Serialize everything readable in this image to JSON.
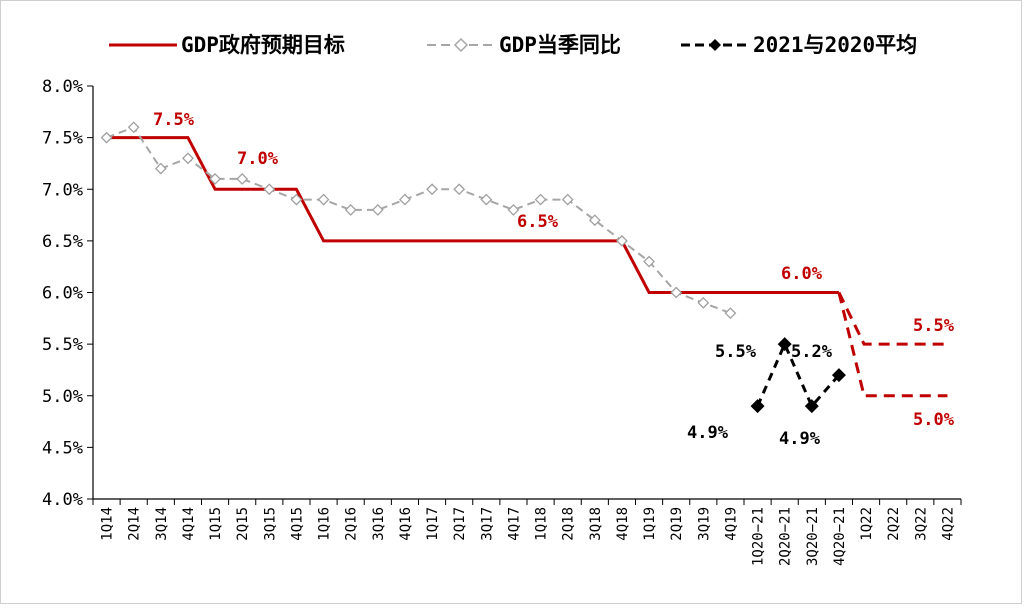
{
  "chart_data": {
    "type": "line",
    "categories": [
      "1Q14",
      "2Q14",
      "3Q14",
      "4Q14",
      "1Q15",
      "2Q15",
      "3Q15",
      "4Q15",
      "1Q16",
      "2Q16",
      "3Q16",
      "4Q16",
      "1Q17",
      "2Q17",
      "3Q17",
      "4Q17",
      "1Q18",
      "2Q18",
      "3Q18",
      "4Q18",
      "1Q19",
      "2Q19",
      "3Q19",
      "4Q19",
      "1Q20−21",
      "2Q20−21",
      "3Q20−21",
      "4Q20−21",
      "1Q22",
      "2Q22",
      "3Q22",
      "4Q22"
    ],
    "y_ticks": [
      "8.0%",
      "7.5%",
      "7.0%",
      "6.5%",
      "6.0%",
      "5.5%",
      "5.0%",
      "4.5%",
      "4.0%"
    ],
    "ylim": [
      4.0,
      8.0
    ],
    "grid": false,
    "legend_position": "top",
    "series": [
      {
        "name": "GDP政府预期目标",
        "color": "#c00000",
        "style": "solid-step",
        "values": [
          7.5,
          7.5,
          7.5,
          7.5,
          7.0,
          7.0,
          7.0,
          7.0,
          6.5,
          6.5,
          6.5,
          6.5,
          6.5,
          6.5,
          6.5,
          6.5,
          6.5,
          6.5,
          6.5,
          6.5,
          6.0,
          6.0,
          6.0,
          6.0,
          6.0,
          6.0,
          6.0,
          6.0,
          null,
          null,
          null,
          null
        ]
      },
      {
        "name": "GDP当季同比",
        "color": "#a6a6a6",
        "style": "dashed-hollow-diamond",
        "values": [
          7.5,
          7.6,
          7.2,
          7.3,
          7.1,
          7.1,
          7.0,
          6.9,
          6.9,
          6.8,
          6.8,
          6.9,
          7.0,
          7.0,
          6.9,
          6.8,
          6.9,
          6.9,
          6.7,
          6.5,
          6.3,
          6.0,
          5.9,
          5.8,
          null,
          null,
          null,
          null,
          null,
          null,
          null,
          null
        ]
      },
      {
        "name": "2021与2020平均",
        "color": "#000000",
        "style": "dashed-filled-diamond",
        "values": [
          null,
          null,
          null,
          null,
          null,
          null,
          null,
          null,
          null,
          null,
          null,
          null,
          null,
          null,
          null,
          null,
          null,
          null,
          null,
          null,
          null,
          null,
          null,
          null,
          4.9,
          5.5,
          4.9,
          5.2,
          null,
          null,
          null,
          null
        ]
      }
    ],
    "target_projection": {
      "color": "#c00000",
      "start_category": "4Q20−21",
      "upper_value": 5.5,
      "lower_value": 5.0,
      "end_category": "4Q22"
    },
    "annotations": {
      "target_75": "7.5%",
      "target_70": "7.0%",
      "target_65": "6.5%",
      "target_60": "6.0%",
      "target_55": "5.5%",
      "target_50": "5.0%",
      "avg_1q": "4.9%",
      "avg_2q": "5.5%",
      "avg_3q": "4.9%",
      "avg_4q": "5.2%"
    }
  }
}
